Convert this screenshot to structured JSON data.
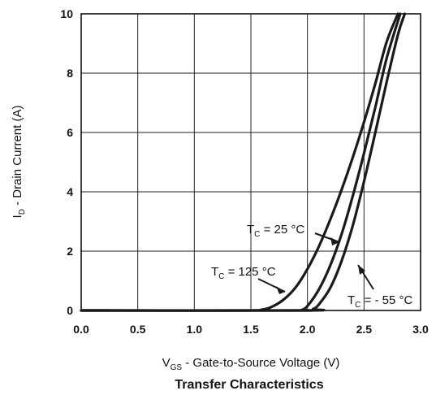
{
  "chart_data": {
    "type": "line",
    "title": "Transfer Characteristics",
    "xlabel": {
      "main": "V",
      "sub": "GS",
      "rest": " - Gate-to-Source Voltage (V)"
    },
    "ylabel": {
      "main": "I",
      "sub": "D",
      "rest": " - Drain Current (A)"
    },
    "xlim": [
      0,
      3.0
    ],
    "ylim": [
      0,
      10
    ],
    "x_ticks": [
      "0.0",
      "0.5",
      "1.0",
      "1.5",
      "2.0",
      "2.5",
      "3.0"
    ],
    "y_ticks": [
      "0",
      "2",
      "4",
      "6",
      "8",
      "10"
    ],
    "grid": true,
    "series": [
      {
        "name": {
          "main": "T",
          "sub": "C",
          "rest": " = 125 °C"
        },
        "x": [
          0.0,
          1.4,
          1.6,
          1.7,
          1.8,
          1.9,
          2.0,
          2.1,
          2.2,
          2.3,
          2.4,
          2.5,
          2.6,
          2.7,
          2.8
        ],
        "y": [
          0.0,
          0.0,
          0.03,
          0.15,
          0.4,
          0.8,
          1.4,
          2.15,
          3.05,
          4.05,
          5.15,
          6.35,
          7.65,
          9.05,
          10.0
        ]
      },
      {
        "name": {
          "main": "T",
          "sub": "C",
          "rest": " = 25 °C"
        },
        "x": [
          0.0,
          1.9,
          1.95,
          2.0,
          2.1,
          2.2,
          2.3,
          2.4,
          2.5,
          2.6,
          2.7,
          2.82
        ],
        "y": [
          0.0,
          0.0,
          0.02,
          0.15,
          0.7,
          1.5,
          2.55,
          3.85,
          5.3,
          6.85,
          8.5,
          10.0
        ]
      },
      {
        "name": {
          "main": "T",
          "sub": "C",
          "rest": " = - 55 °C"
        },
        "x": [
          0.0,
          1.98,
          2.05,
          2.1,
          2.2,
          2.3,
          2.4,
          2.5,
          2.6,
          2.7,
          2.8,
          2.86
        ],
        "y": [
          0.0,
          0.0,
          0.05,
          0.2,
          0.75,
          1.65,
          2.85,
          4.35,
          6.0,
          7.7,
          9.3,
          10.0
        ]
      }
    ]
  }
}
